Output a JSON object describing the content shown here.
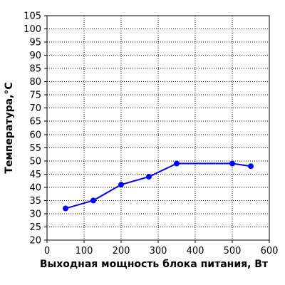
{
  "chart_data": {
    "type": "line",
    "xlabel": "Выходная мощность блока питания, Вт",
    "ylabel": "Температура,°С",
    "xlim": [
      0,
      600
    ],
    "ylim": [
      20,
      105
    ],
    "x_ticks": [
      0,
      100,
      200,
      300,
      400,
      500,
      600
    ],
    "y_ticks": [
      20,
      25,
      30,
      35,
      40,
      45,
      50,
      55,
      60,
      65,
      70,
      75,
      80,
      85,
      90,
      95,
      100,
      105
    ],
    "grid": true,
    "series": [
      {
        "x": [
          50,
          125,
          200,
          275,
          350,
          500,
          550
        ],
        "y": [
          32,
          35,
          41,
          44,
          49,
          49,
          48
        ]
      }
    ],
    "colors": {
      "line": "#0000ff",
      "grid": "#000000",
      "axis": "#000000"
    }
  }
}
